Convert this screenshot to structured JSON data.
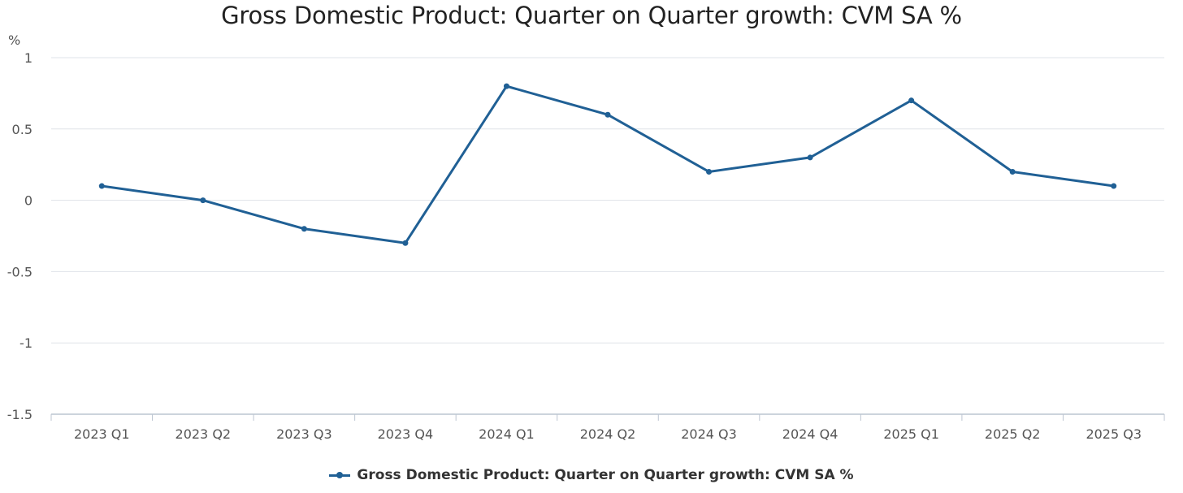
{
  "chart_data": {
    "type": "line",
    "title": "Gross Domestic Product: Quarter on Quarter growth: CVM SA %",
    "ylabel": "%",
    "xlabel": "",
    "categories": [
      "2023 Q1",
      "2023 Q2",
      "2023 Q3",
      "2023 Q4",
      "2024 Q1",
      "2024 Q2",
      "2024 Q3",
      "2024 Q4",
      "2025 Q1",
      "2025 Q2",
      "2025 Q3"
    ],
    "series": [
      {
        "name": "Gross Domestic Product: Quarter on Quarter growth: CVM SA %",
        "values": [
          0.1,
          0.0,
          -0.2,
          -0.3,
          0.8,
          0.6,
          0.2,
          0.3,
          0.7,
          0.2,
          0.1
        ],
        "color": "#206095"
      }
    ],
    "ylim": [
      -1.5,
      1
    ],
    "yticks": [
      1,
      0.5,
      0,
      -0.5,
      -1,
      -1.5
    ],
    "ytick_labels": [
      "1",
      "0.5",
      "0",
      "-0.5",
      "-1",
      "-1.5"
    ],
    "grid": true,
    "legend_position": "bottom-center"
  }
}
